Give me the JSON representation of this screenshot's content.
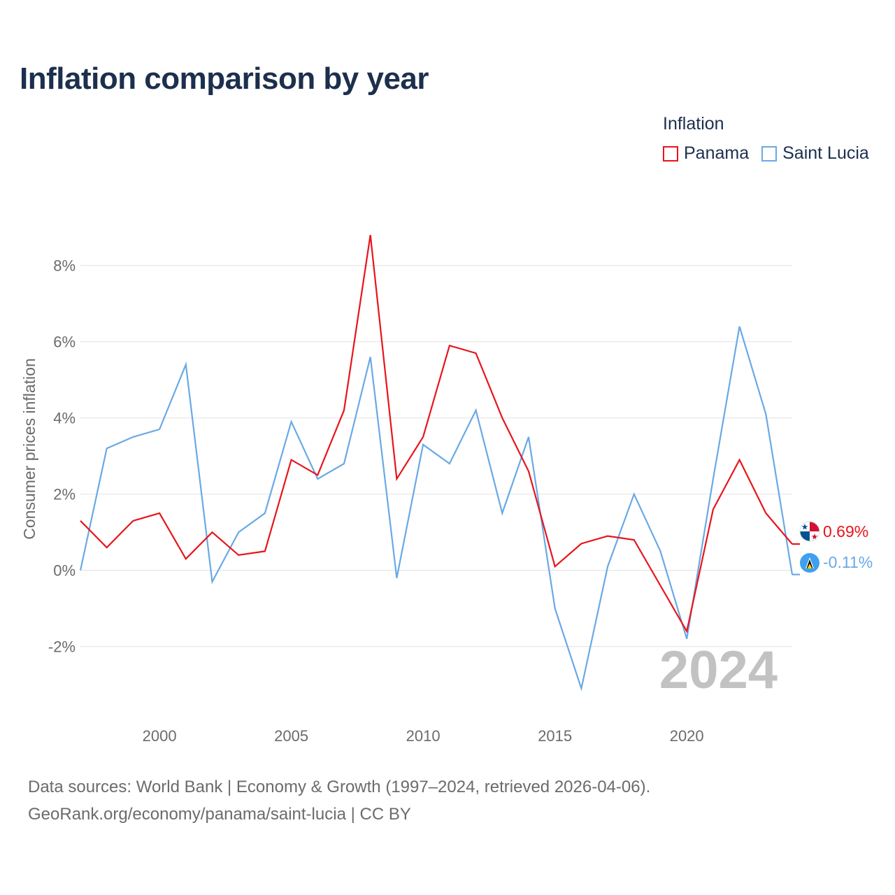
{
  "title": "Inflation comparison by year",
  "legend": {
    "title": "Inflation",
    "items": [
      {
        "label": "Panama",
        "color": "#e8141c"
      },
      {
        "label": "Saint Lucia",
        "color": "#6aa9e4"
      }
    ]
  },
  "footer": {
    "line1": "Data sources: World Bank | Economy & Growth (1997–2024, retrieved 2026-04-06).",
    "line2": "GeoRank.org/economy/panama/saint-lucia | CC BY"
  },
  "chart_data": {
    "type": "line",
    "title": "Inflation comparison by year",
    "xlabel": "",
    "ylabel": "Consumer prices inflation",
    "x": [
      1997,
      1998,
      1999,
      2000,
      2001,
      2002,
      2003,
      2004,
      2005,
      2006,
      2007,
      2008,
      2009,
      2010,
      2011,
      2012,
      2013,
      2014,
      2015,
      2016,
      2017,
      2018,
      2019,
      2020,
      2021,
      2022,
      2023,
      2024
    ],
    "xlim": [
      1997,
      2024
    ],
    "ylim": [
      -3.75,
      9.5
    ],
    "xticks": [
      2000,
      2005,
      2010,
      2015,
      2020
    ],
    "xtick_labels": [
      "2000",
      "2005",
      "2010",
      "2015",
      "2020"
    ],
    "yticks": [
      8,
      6,
      4,
      2,
      0,
      -2
    ],
    "ytick_labels": [
      "8%",
      "6%",
      "4%",
      "2%",
      "0%",
      "-2%"
    ],
    "grid": true,
    "watermark": "2024",
    "series": [
      {
        "name": "Panama",
        "color": "#e8141c",
        "values": [
          1.3,
          0.6,
          1.3,
          1.5,
          0.3,
          1.0,
          0.4,
          0.5,
          2.9,
          2.5,
          4.2,
          8.8,
          2.4,
          3.5,
          5.9,
          5.7,
          4.0,
          2.6,
          0.1,
          0.7,
          0.9,
          0.8,
          -0.4,
          -1.6,
          1.6,
          2.9,
          1.5,
          0.69
        ],
        "end_label": "0.69%"
      },
      {
        "name": "Saint Lucia",
        "color": "#6aa9e4",
        "values": [
          0.0,
          3.2,
          3.5,
          3.7,
          5.4,
          -0.3,
          1.0,
          1.5,
          3.9,
          2.4,
          2.8,
          5.6,
          -0.2,
          3.3,
          2.8,
          4.2,
          1.5,
          3.5,
          -1.0,
          -3.1,
          0.1,
          2.0,
          0.5,
          -1.8,
          2.4,
          6.4,
          4.1,
          -0.11
        ],
        "end_label": "-0.11%"
      }
    ]
  }
}
